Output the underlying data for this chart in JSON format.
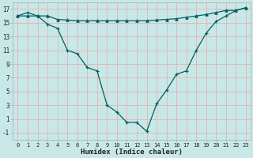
{
  "xlabel": "Humidex (Indice chaleur)",
  "background_color": "#c8e8e8",
  "grid_color": "#e8b0b0",
  "line_color": "#006060",
  "xlim": [
    -0.5,
    23.5
  ],
  "ylim": [
    -2.0,
    18.0
  ],
  "yticks": [
    -1,
    1,
    3,
    5,
    7,
    9,
    11,
    13,
    15,
    17
  ],
  "xtick_positions": [
    0,
    1,
    2,
    3,
    4,
    5,
    6,
    7,
    8,
    9,
    10,
    11,
    12,
    13,
    14,
    15,
    16,
    17,
    18,
    19,
    20,
    21,
    22,
    23
  ],
  "xtick_labels": [
    "0",
    "1",
    "2",
    "3",
    "4",
    "5",
    "6",
    "7",
    "8",
    "9",
    "10",
    "11",
    "12",
    "13",
    "14",
    "15",
    "16",
    "17",
    "18",
    "19",
    "20",
    "21",
    "22",
    "23"
  ],
  "line1_x": [
    0,
    1,
    2,
    3,
    4,
    5,
    6,
    7,
    8,
    9,
    10,
    11,
    12,
    13,
    14,
    15,
    16,
    17,
    18,
    19,
    20,
    21,
    22,
    23
  ],
  "line1_y": [
    16.0,
    16.5,
    16.0,
    14.8,
    14.2,
    11.0,
    10.5,
    8.5,
    8.0,
    3.0,
    2.0,
    0.5,
    0.5,
    -0.8,
    3.2,
    5.2,
    7.5,
    8.0,
    11.0,
    13.5,
    15.2,
    16.0,
    16.8,
    17.2
  ],
  "line2_x": [
    0,
    1,
    2,
    3,
    4,
    5,
    6,
    7,
    8,
    9,
    10,
    11,
    12,
    13,
    14,
    15,
    16,
    17,
    18,
    19,
    20,
    21,
    22,
    23
  ],
  "line2_y": [
    16.0,
    16.0,
    16.0,
    16.0,
    15.5,
    15.4,
    15.3,
    15.3,
    15.3,
    15.3,
    15.3,
    15.3,
    15.3,
    15.3,
    15.4,
    15.5,
    15.6,
    15.8,
    16.0,
    16.2,
    16.5,
    16.8,
    16.8,
    17.2
  ]
}
